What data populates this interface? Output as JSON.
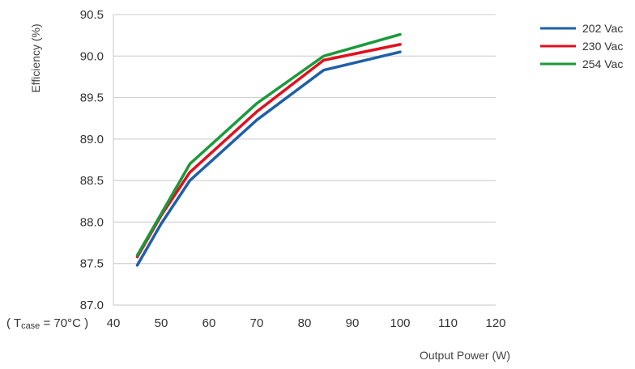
{
  "chart_data": {
    "type": "line",
    "title": "",
    "xlabel": "Output Power (W)",
    "ylabel": "Efficiency (%)",
    "xlim": [
      40,
      120
    ],
    "ylim": [
      87.0,
      90.5
    ],
    "xticks": [
      40,
      50,
      60,
      70,
      80,
      90,
      100,
      110,
      120
    ],
    "yticks": [
      87.0,
      87.5,
      88.0,
      88.5,
      89.0,
      89.5,
      90.0,
      90.5
    ],
    "grid": "horizontal",
    "legend": "right",
    "annotation": {
      "prefix": "( T",
      "subscript": "case",
      "suffix": " = 70°C )"
    },
    "series": [
      {
        "name": "202 Vac",
        "color": "#1f5fa8",
        "x": [
          45,
          50,
          56,
          70,
          84,
          100
        ],
        "y": [
          87.48,
          87.98,
          88.5,
          89.23,
          89.83,
          90.05
        ]
      },
      {
        "name": "230 Vac",
        "color": "#e0101e",
        "x": [
          45,
          50,
          56,
          70,
          84,
          100
        ],
        "y": [
          87.58,
          88.08,
          88.6,
          89.33,
          89.95,
          90.14
        ]
      },
      {
        "name": "254 Vac",
        "color": "#1a9a3a",
        "x": [
          45,
          50,
          56,
          70,
          84,
          100
        ],
        "y": [
          87.6,
          88.1,
          88.7,
          89.43,
          90.0,
          90.26
        ]
      }
    ]
  }
}
